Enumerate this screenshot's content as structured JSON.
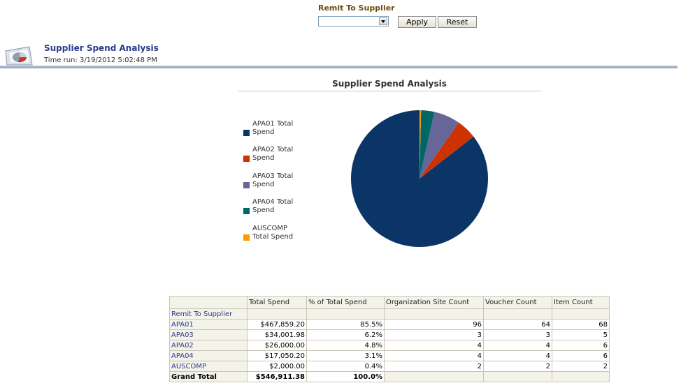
{
  "prompt": {
    "label": "Remit To Supplier",
    "selected": "",
    "apply_label": "Apply",
    "reset_label": "Reset"
  },
  "report": {
    "title": "Supplier Spend Analysis",
    "time_run": "Time run: 3/19/2012 5:02:48 PM",
    "icon": "pie-chart-report-icon"
  },
  "colors": {
    "APA01": "#0b3566",
    "APA02": "#cc3300",
    "APA03": "#666699",
    "APA04": "#006666",
    "AUSCOMP": "#ff9900"
  },
  "chart_data": {
    "type": "pie",
    "title": "Supplier Spend Analysis",
    "legend_position": "left",
    "slices": [
      {
        "label": "APA01 Total Spend",
        "value": 467859.2
      },
      {
        "label": "APA02 Total Spend",
        "value": 26000.0
      },
      {
        "label": "APA03 Total Spend",
        "value": 34001.98
      },
      {
        "label": "APA04 Total Spend",
        "value": 17050.2
      },
      {
        "label": "AUSCOMP Total Spend",
        "value": 2000.0
      }
    ]
  },
  "table": {
    "headers": [
      "",
      "Total Spend",
      "% of Total Spend",
      "Organization Site Count",
      "Voucher Count",
      "Item Count"
    ],
    "row_header_label": "Remit To Supplier",
    "rows": [
      {
        "supplier": "APA01",
        "total_spend": "$467,859.20",
        "pct": "85.5%",
        "org_site": "96",
        "voucher": "64",
        "item": "68"
      },
      {
        "supplier": "APA03",
        "total_spend": "$34,001.98",
        "pct": "6.2%",
        "org_site": "3",
        "voucher": "3",
        "item": "5"
      },
      {
        "supplier": "APA02",
        "total_spend": "$26,000.00",
        "pct": "4.8%",
        "org_site": "4",
        "voucher": "4",
        "item": "6"
      },
      {
        "supplier": "APA04",
        "total_spend": "$17,050.20",
        "pct": "3.1%",
        "org_site": "4",
        "voucher": "4",
        "item": "6"
      },
      {
        "supplier": "AUSCOMP",
        "total_spend": "$2,000.00",
        "pct": "0.4%",
        "org_site": "2",
        "voucher": "2",
        "item": "2"
      }
    ],
    "grand_total": {
      "label": "Grand Total",
      "total_spend": "$546,911.38",
      "pct": "100.0%"
    }
  }
}
